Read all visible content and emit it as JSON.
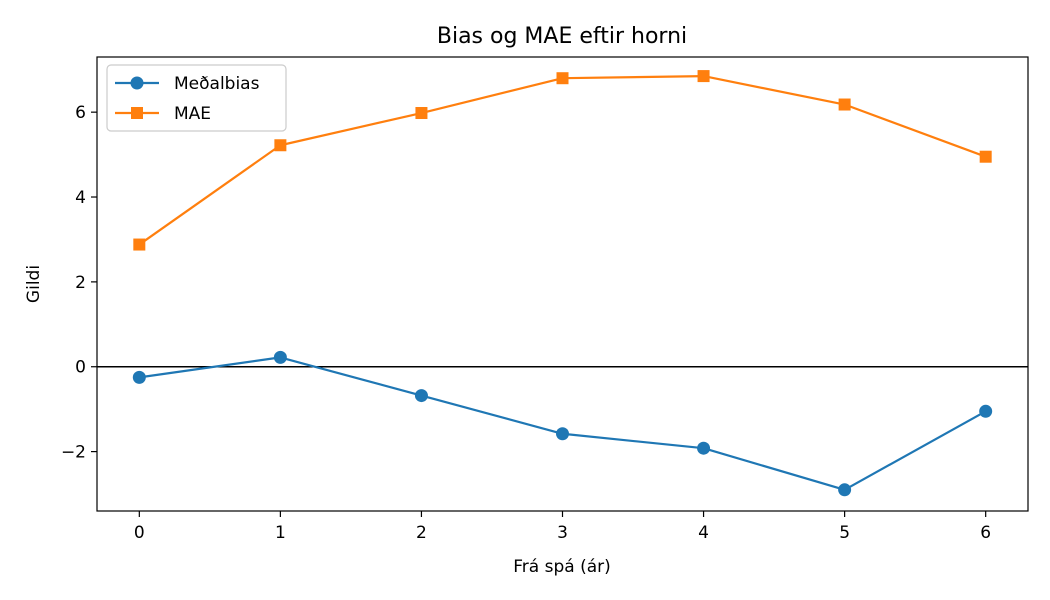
{
  "chart_data": {
    "type": "line",
    "title": "Bias og MAE eftir horni",
    "xlabel": "Frá spá (ár)",
    "ylabel": "Gildi",
    "x": [
      0,
      1,
      2,
      3,
      4,
      5,
      6
    ],
    "xlim": [
      -0.3,
      6.3
    ],
    "ylim": [
      -3.4,
      7.3
    ],
    "xticks": [
      0,
      1,
      2,
      3,
      4,
      5,
      6
    ],
    "yticks": [
      -2,
      0,
      2,
      4,
      6
    ],
    "ytick_labels": [
      "−2",
      "0",
      "2",
      "4",
      "6"
    ],
    "reference_line_y": 0,
    "grid": false,
    "legend_position": "top-left",
    "series": [
      {
        "name": "Meðalbias",
        "marker": "circle",
        "color": "#1f77b4",
        "values": [
          -0.25,
          0.22,
          -0.68,
          -1.58,
          -1.92,
          -2.9,
          -1.05
        ]
      },
      {
        "name": "MAE",
        "marker": "square",
        "color": "#ff7f0e",
        "values": [
          2.88,
          5.22,
          5.98,
          6.8,
          6.85,
          6.18,
          4.95
        ]
      }
    ]
  }
}
